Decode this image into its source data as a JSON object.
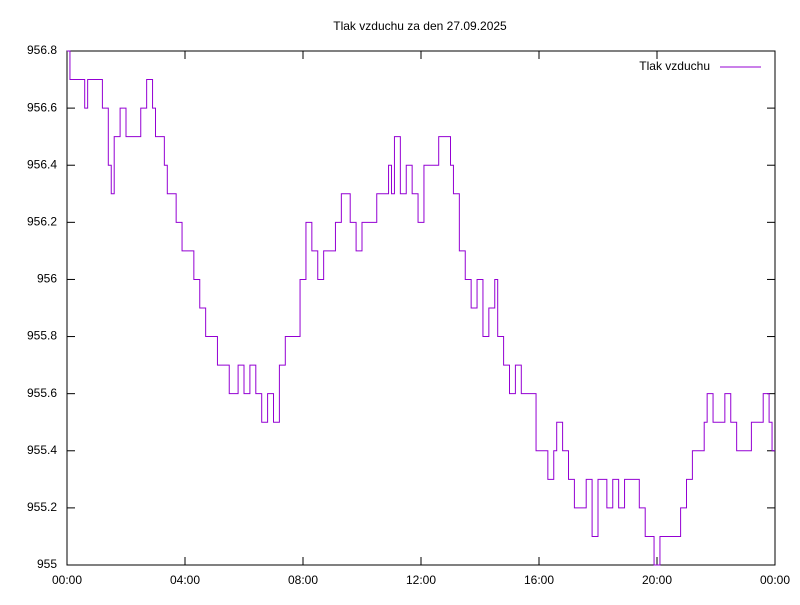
{
  "chart_data": {
    "type": "line",
    "title": "Tlak vzduchu za den 27.09.2025",
    "steps": true,
    "grid": false,
    "legend": "top-right",
    "xlim": [
      0,
      24
    ],
    "xticks": [
      {
        "value": 0,
        "label": "00:00"
      },
      {
        "value": 4,
        "label": "04:00"
      },
      {
        "value": 8,
        "label": "08:00"
      },
      {
        "value": 12,
        "label": "12:00"
      },
      {
        "value": 16,
        "label": "16:00"
      },
      {
        "value": 20,
        "label": "20:00"
      },
      {
        "value": 24,
        "label": "00:00"
      }
    ],
    "ylim": [
      955,
      956.8
    ],
    "yticks": [
      955,
      955.2,
      955.4,
      955.6,
      955.8,
      956,
      956.2,
      956.4,
      956.6,
      956.8
    ],
    "x": [
      0,
      0.1,
      0.6,
      0.7,
      1.2,
      1.4,
      1.5,
      1.6,
      1.8,
      2.0,
      2.5,
      2.7,
      2.9,
      3.0,
      3.3,
      3.4,
      3.7,
      3.9,
      4.3,
      4.5,
      4.7,
      5.1,
      5.5,
      5.8,
      6.0,
      6.2,
      6.4,
      6.6,
      6.8,
      7.0,
      7.2,
      7.4,
      7.9,
      8.1,
      8.3,
      8.5,
      8.7,
      9.1,
      9.3,
      9.6,
      9.8,
      10.0,
      10.5,
      10.9,
      11.0,
      11.1,
      11.3,
      11.5,
      11.7,
      11.9,
      12.1,
      12.6,
      13.0,
      13.1,
      13.3,
      13.5,
      13.7,
      13.9,
      14.1,
      14.3,
      14.5,
      14.6,
      14.8,
      15.0,
      15.2,
      15.4,
      15.9,
      16.3,
      16.5,
      16.6,
      16.8,
      17.0,
      17.2,
      17.6,
      17.8,
      18.0,
      18.3,
      18.5,
      18.7,
      18.9,
      19.4,
      19.6,
      19.9,
      20.1,
      20.8,
      21.0,
      21.2,
      21.6,
      21.7,
      21.9,
      22.3,
      22.5,
      22.7,
      23.2,
      23.6,
      23.8,
      23.9,
      24.0
    ],
    "series": [
      {
        "name": "Tlak vzduchu",
        "color": "#9400d3",
        "values": [
          956.8,
          956.7,
          956.6,
          956.7,
          956.6,
          956.4,
          956.3,
          956.5,
          956.6,
          956.5,
          956.6,
          956.7,
          956.6,
          956.5,
          956.4,
          956.3,
          956.2,
          956.1,
          956.0,
          955.9,
          955.8,
          955.7,
          955.6,
          955.7,
          955.6,
          955.7,
          955.6,
          955.5,
          955.6,
          955.5,
          955.7,
          955.8,
          956.0,
          956.2,
          956.1,
          956.0,
          956.1,
          956.2,
          956.3,
          956.2,
          956.1,
          956.2,
          956.3,
          956.4,
          956.3,
          956.5,
          956.3,
          956.4,
          956.3,
          956.2,
          956.4,
          956.5,
          956.4,
          956.3,
          956.1,
          956.0,
          955.9,
          956.0,
          955.8,
          955.9,
          956.0,
          955.8,
          955.7,
          955.6,
          955.7,
          955.6,
          955.4,
          955.3,
          955.4,
          955.5,
          955.4,
          955.3,
          955.2,
          955.3,
          955.1,
          955.3,
          955.2,
          955.3,
          955.2,
          955.3,
          955.2,
          955.1,
          955.0,
          955.1,
          955.2,
          955.3,
          955.4,
          955.5,
          955.6,
          955.5,
          955.6,
          955.5,
          955.4,
          955.5,
          955.6,
          955.5,
          955.4,
          955.4
        ]
      }
    ]
  }
}
